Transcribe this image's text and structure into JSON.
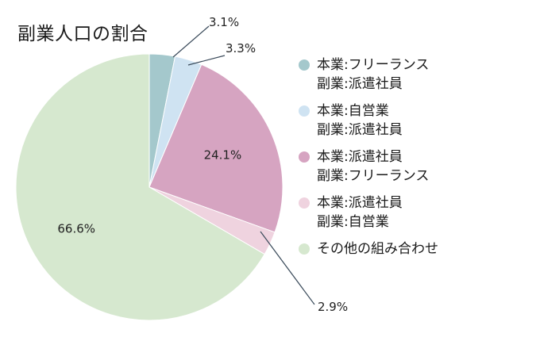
{
  "chart_data": {
    "type": "pie",
    "title": "副業人口の割合",
    "slices": [
      {
        "label_lines": [
          "本業:フリーランス",
          "副業:派遣社員"
        ],
        "value": 3.1,
        "display": "3.1%",
        "color": "#a4c8cc"
      },
      {
        "label_lines": [
          "本業:自営業",
          "副業:派遣社員"
        ],
        "value": 3.3,
        "display": "3.3%",
        "color": "#cfe3f2"
      },
      {
        "label_lines": [
          "本業:派遣社員",
          "副業:フリーランス"
        ],
        "value": 24.1,
        "display": "24.1%",
        "color": "#d6a4c1"
      },
      {
        "label_lines": [
          "本業:派遣社員",
          "副業:自営業"
        ],
        "value": 2.9,
        "display": "2.9%",
        "color": "#efd3df"
      },
      {
        "label_lines": [
          "その他の組み合わせ"
        ],
        "value": 66.6,
        "display": "66.6%",
        "color": "#d6e8cf"
      }
    ],
    "legend_position": "right"
  }
}
